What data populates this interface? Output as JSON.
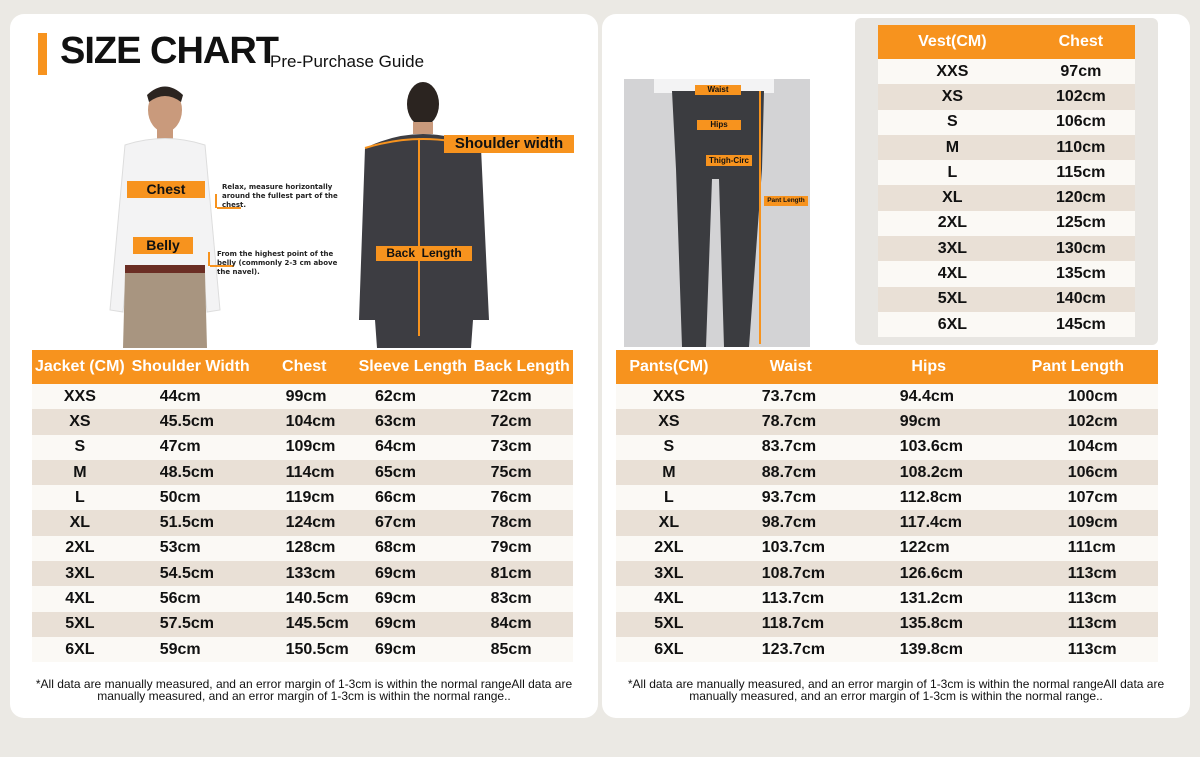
{
  "header": {
    "title": "SIZE CHART",
    "subtitle": "Pre-Purchase Guide"
  },
  "colors": {
    "accent": "#f7931e",
    "row_light": "#fbf9f5",
    "row_dark": "#e9e0d6",
    "background": "#ebe9e4"
  },
  "diagram_labels": {
    "chest": "Chest",
    "chest_note": "Relax, measure horizontally around the fullest part of the chest.",
    "belly": "Belly",
    "belly_note": "From the highest point of the belly (commonly 2-3 cm above the navel).",
    "shoulder": "Shoulder width",
    "back": "Back  Length",
    "waist": "Waist",
    "hips": "Hips",
    "thigh": "Thigh-Circ",
    "pant_length": "Pant Length"
  },
  "jacket_table": {
    "headers": [
      "Jacket (CM)",
      "Shoulder Width",
      "Chest",
      "Sleeve Length",
      "Back Length"
    ],
    "rows": [
      [
        "XXS",
        "44cm",
        "99cm",
        "62cm",
        "72cm"
      ],
      [
        "XS",
        "45.5cm",
        "104cm",
        "63cm",
        "72cm"
      ],
      [
        "S",
        "47cm",
        "109cm",
        "64cm",
        "73cm"
      ],
      [
        "M",
        "48.5cm",
        "114cm",
        "65cm",
        "75cm"
      ],
      [
        "L",
        "50cm",
        "119cm",
        "66cm",
        "76cm"
      ],
      [
        "XL",
        "51.5cm",
        "124cm",
        "67cm",
        "78cm"
      ],
      [
        "2XL",
        "53cm",
        "128cm",
        "68cm",
        "79cm"
      ],
      [
        "3XL",
        "54.5cm",
        "133cm",
        "69cm",
        "81cm"
      ],
      [
        "4XL",
        "56cm",
        "140.5cm",
        "69cm",
        "83cm"
      ],
      [
        "5XL",
        "57.5cm",
        "145.5cm",
        "69cm",
        "84cm"
      ],
      [
        "6XL",
        "59cm",
        "150.5cm",
        "69cm",
        "85cm"
      ]
    ]
  },
  "vest_table": {
    "headers": [
      "Vest(CM)",
      "Chest"
    ],
    "rows": [
      [
        "XXS",
        "97cm"
      ],
      [
        "XS",
        "102cm"
      ],
      [
        "S",
        "106cm"
      ],
      [
        "M",
        "110cm"
      ],
      [
        "L",
        "115cm"
      ],
      [
        "XL",
        "120cm"
      ],
      [
        "2XL",
        "125cm"
      ],
      [
        "3XL",
        "130cm"
      ],
      [
        "4XL",
        "135cm"
      ],
      [
        "5XL",
        "140cm"
      ],
      [
        "6XL",
        "145cm"
      ]
    ]
  },
  "pants_table": {
    "headers": [
      "Pants(CM)",
      "Waist",
      "Hips",
      "Pant Length"
    ],
    "rows": [
      [
        "XXS",
        "73.7cm",
        "94.4cm",
        "100cm"
      ],
      [
        "XS",
        "78.7cm",
        "99cm",
        "102cm"
      ],
      [
        "S",
        "83.7cm",
        "103.6cm",
        "104cm"
      ],
      [
        "M",
        "88.7cm",
        "108.2cm",
        "106cm"
      ],
      [
        "L",
        "93.7cm",
        "112.8cm",
        "107cm"
      ],
      [
        "XL",
        "98.7cm",
        "117.4cm",
        "109cm"
      ],
      [
        "2XL",
        "103.7cm",
        "122cm",
        "111cm"
      ],
      [
        "3XL",
        "108.7cm",
        "126.6cm",
        "113cm"
      ],
      [
        "4XL",
        "113.7cm",
        "131.2cm",
        "113cm"
      ],
      [
        "5XL",
        "118.7cm",
        "135.8cm",
        "113cm"
      ],
      [
        "6XL",
        "123.7cm",
        "139.8cm",
        "113cm"
      ]
    ]
  },
  "footnote": "*All data are manually measured, and an error margin of 1-3cm is within the normal rangeAll data are manually measured, and an error margin of 1-3cm is within the normal range.."
}
